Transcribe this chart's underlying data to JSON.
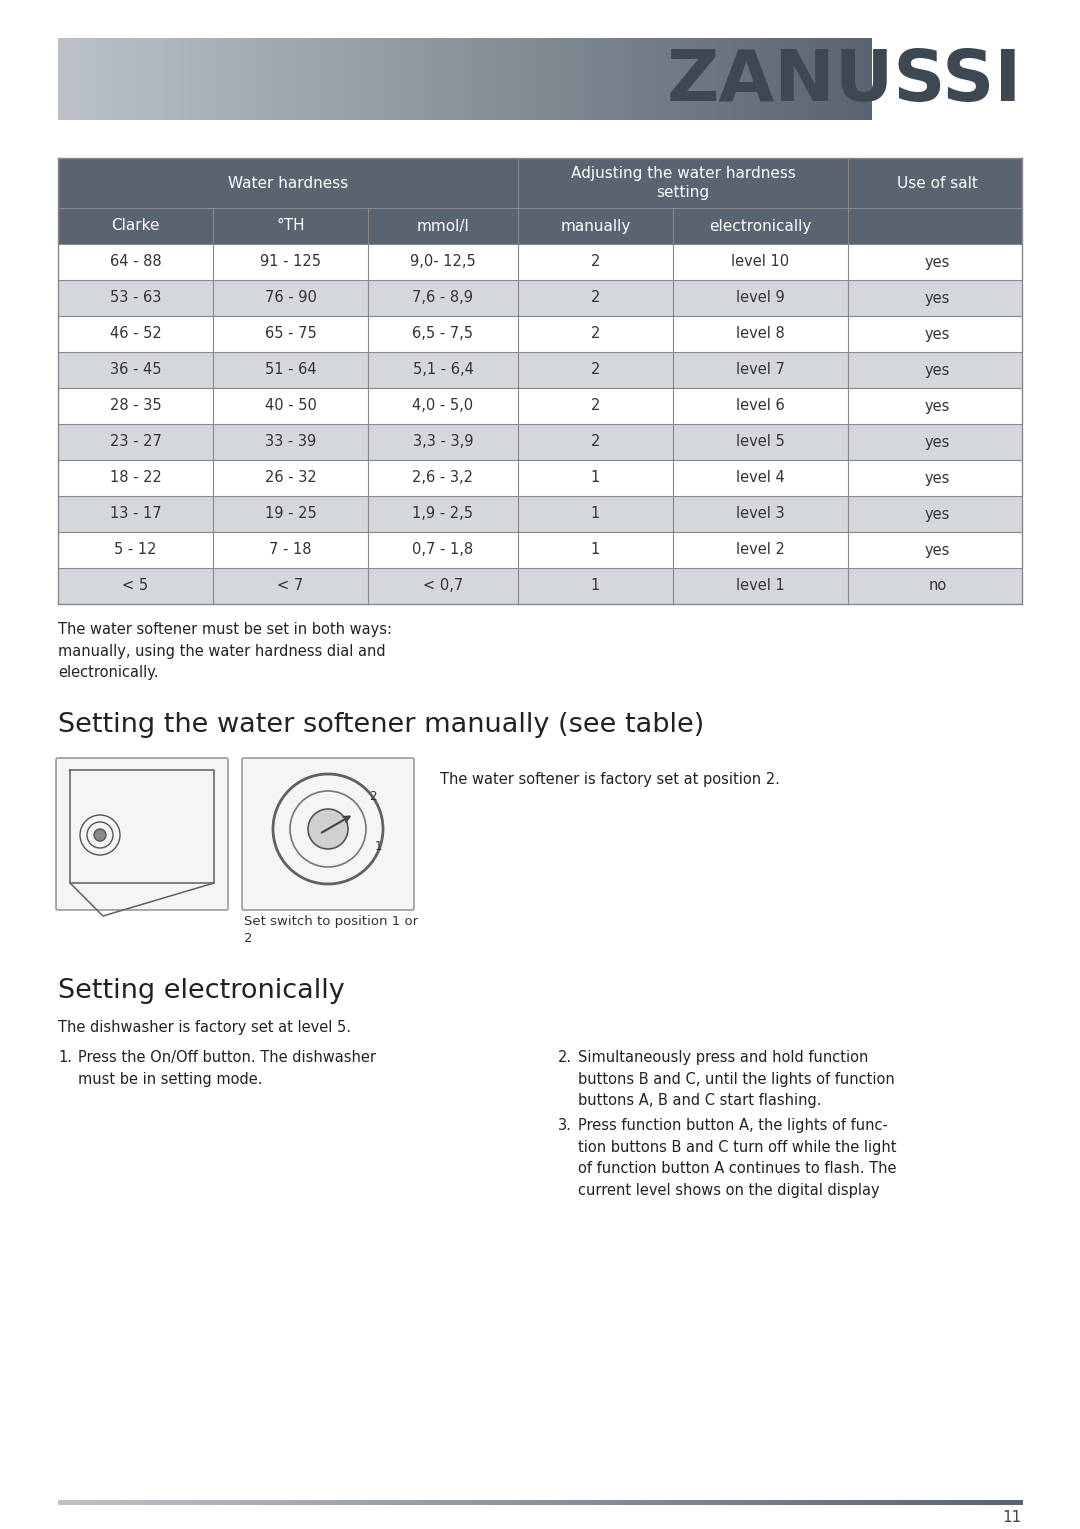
{
  "page_bg": "#ffffff",
  "zanussi_text": "ZANUSSI",
  "zanussi_color": "#3d4852",
  "table_header_bg": "#5a6470",
  "table_row_odd_bg": "#ffffff",
  "table_row_even_bg": "#d4d8dc",
  "col_headers_sub": [
    "Clarke",
    "°TH",
    "mmol/l",
    "manually",
    "electronically",
    ""
  ],
  "table_data": [
    [
      "64 - 88",
      "91 - 125",
      "9,0- 12,5",
      "2",
      "level 10",
      "yes"
    ],
    [
      "53 - 63",
      "76 - 90",
      "7,6 - 8,9",
      "2",
      "level 9",
      "yes"
    ],
    [
      "46 - 52",
      "65 - 75",
      "6,5 - 7,5",
      "2",
      "level 8",
      "yes"
    ],
    [
      "36 - 45",
      "51 - 64",
      "5,1 - 6,4",
      "2",
      "level 7",
      "yes"
    ],
    [
      "28 - 35",
      "40 - 50",
      "4,0 - 5,0",
      "2",
      "level 6",
      "yes"
    ],
    [
      "23 - 27",
      "33 - 39",
      "3,3 - 3,9",
      "2",
      "level 5",
      "yes"
    ],
    [
      "18 - 22",
      "26 - 32",
      "2,6 - 3,2",
      "1",
      "level 4",
      "yes"
    ],
    [
      "13 - 17",
      "19 - 25",
      "1,9 - 2,5",
      "1",
      "level 3",
      "yes"
    ],
    [
      "5 - 12",
      "7 - 18",
      "0,7 - 1,8",
      "1",
      "level 2",
      "yes"
    ],
    [
      "< 5",
      "< 7",
      "< 0,7",
      "1",
      "level 1",
      "no"
    ]
  ],
  "note_text": "The water softener must be set in both ways:\nmanually, using the water hardness dial and\nelectronically.",
  "section1_title": "Setting the water softener manually (see table)",
  "factory_set_text": "The water softener is factory set at position 2.",
  "switch_caption": "Set switch to position 1 or\n2",
  "section2_title": "Setting electronically",
  "factory_level_text": "The dishwasher is factory set at level 5.",
  "step1_text": "Press the On/Off button. The dishwasher\nmust be in setting mode.",
  "step2_text": "Simultaneously press and hold function\nbuttons B and C, until the lights of function\nbuttons A, B and C start flashing.",
  "step3_text": "Press function button A, the lights of func-\ntion buttons B and C turn off while the light\nof function button A continues to flash. The\ncurrent level shows on the digital display",
  "page_number": "11"
}
